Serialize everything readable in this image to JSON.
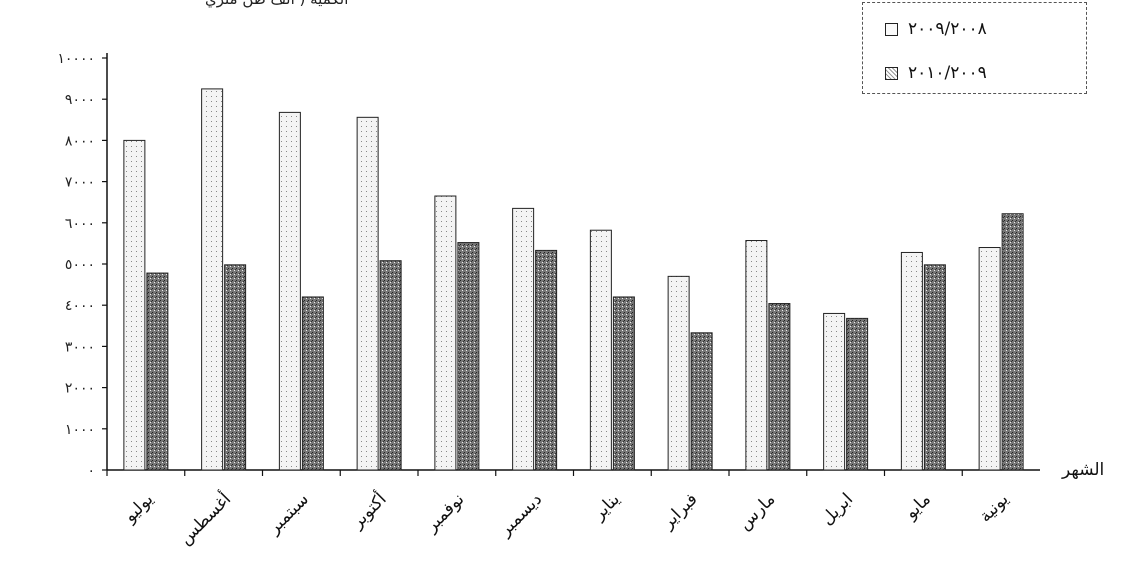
{
  "chart_data": {
    "type": "bar",
    "ylabel": "الكمية ( ألف طن متري",
    "xlabel": "الشهر",
    "categories": [
      "يوليو",
      "أغسطس",
      "سبتمبر",
      "أكتوبر",
      "نوفمبر",
      "ديسمبر",
      "يناير",
      "فبراير",
      "مارس",
      "ابريل",
      "مايو",
      "يونية"
    ],
    "ylim": [
      0,
      10000
    ],
    "yticks": [
      0,
      1000,
      2000,
      3000,
      4000,
      5000,
      6000,
      7000,
      8000,
      9000,
      10000
    ],
    "ytick_labels": [
      "٠",
      "١٠٠٠",
      "٢٠٠٠",
      "٣٠٠٠",
      "٤٠٠٠",
      "٥٠٠٠",
      "٦٠٠٠",
      "٧٠٠٠",
      "٨٠٠٠",
      "٩٠٠٠",
      "١٠٠٠٠"
    ],
    "series": [
      {
        "name": "٢٠٠٩/٢٠٠٨",
        "values": [
          8000,
          9250,
          8680,
          8560,
          6650,
          6350,
          5820,
          4700,
          5570,
          3800,
          5280,
          5400
        ]
      },
      {
        "name": "٢٠١٠/٢٠٠٩",
        "values": [
          4780,
          4980,
          4200,
          5080,
          5520,
          5330,
          4200,
          3330,
          4040,
          3680,
          4980,
          6220
        ]
      }
    ],
    "legend_position": "top-right",
    "grid": false
  }
}
